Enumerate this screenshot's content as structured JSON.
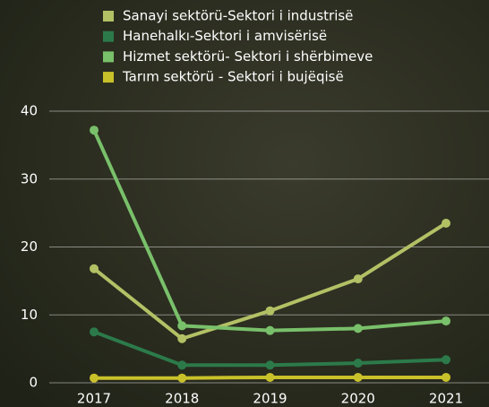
{
  "chart_data": {
    "type": "line",
    "categories": [
      "2017",
      "2018",
      "2019",
      "2020",
      "2021"
    ],
    "series": [
      {
        "name": "Sanayi sektörü-Sektori i industrisë",
        "color": "#b3c165",
        "values": [
          16.8,
          6.5,
          10.6,
          15.3,
          23.5
        ]
      },
      {
        "name": "Hanehalkı-Sektori i amvisërisë",
        "color": "#2c7a4a",
        "values": [
          7.5,
          2.6,
          2.6,
          2.9,
          3.4
        ]
      },
      {
        "name": "Hizmet sektörü- Sektori i shërbimeve",
        "color": "#79c06a",
        "values": [
          37.2,
          8.4,
          7.7,
          8.0,
          9.1
        ]
      },
      {
        "name": "Tarım sektörü - Sektori i bujëqisë",
        "color": "#c9c12a",
        "values": [
          0.7,
          0.7,
          0.8,
          0.8,
          0.8
        ]
      }
    ],
    "ylim": [
      0,
      40
    ],
    "yticks": [
      0,
      10,
      20,
      30,
      40
    ],
    "grid": true,
    "legend": "top"
  }
}
